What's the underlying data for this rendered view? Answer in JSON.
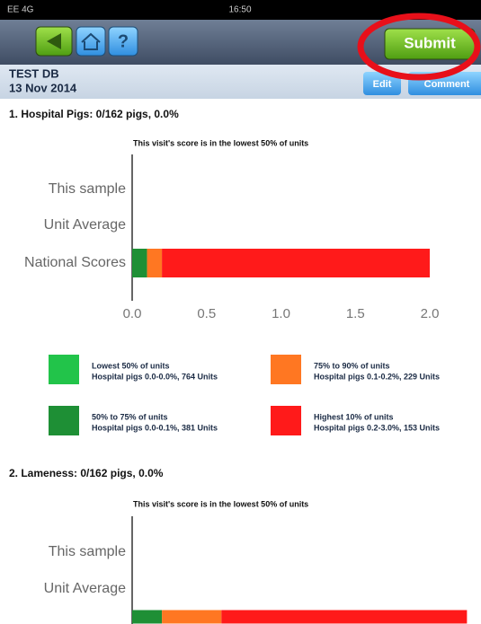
{
  "status_bar": {
    "carrier": "EE 4G",
    "time": "16:50"
  },
  "toolbar": {
    "submit": "Submit"
  },
  "header": {
    "title": "TEST DB",
    "date": "13 Nov 2014",
    "edit": "Edit",
    "comment": "Comment"
  },
  "sections": [
    {
      "title": "1. Hospital Pigs: 0/162 pigs, 0.0%",
      "chart": {
        "type": "bar",
        "orientation": "horizontal",
        "stacked": true,
        "subtitle": "This visit's score is in the lowest 50% of units",
        "categories": [
          "This sample",
          "Unit Average",
          "National Scores"
        ],
        "xlim": [
          0,
          2.0
        ],
        "xticks": [
          {
            "value": 0,
            "label": "0.0"
          },
          {
            "value": 0.5,
            "label": "0.5"
          },
          {
            "value": 1.0,
            "label": "1.0"
          },
          {
            "value": 1.5,
            "label": "1.5"
          },
          {
            "value": 2.0,
            "label": "2.0"
          }
        ],
        "series": [
          {
            "name": "Lowest 50% of units",
            "detail": "Hospital pigs 0.0-0.0%, 764 Units",
            "color": "#22c44a",
            "values": [
              null,
              null,
              0
            ]
          },
          {
            "name": "50% to 75% of units",
            "detail": "Hospital pigs 0.0-0.1%, 381 Units",
            "color": "#1e8f35",
            "values": [
              null,
              null,
              0.1
            ]
          },
          {
            "name": "75% to 90% of units",
            "detail": "Hospital pigs 0.1-0.2%, 229 Units",
            "color": "#ff7722",
            "values": [
              null,
              null,
              0.1
            ]
          },
          {
            "name": "Highest 10% of units",
            "detail": "Hospital pigs 0.2-3.0%, 153 Units",
            "color": "#ff1a1a",
            "values": [
              null,
              null,
              1.8
            ]
          }
        ]
      }
    },
    {
      "title": "2. Lameness: 0/162 pigs, 0.0%",
      "chart": {
        "type": "bar",
        "orientation": "horizontal",
        "stacked": true,
        "subtitle": "This visit's score is in the lowest 50% of units",
        "categories": [
          "This sample",
          "Unit Average",
          null
        ],
        "series": [
          {
            "color": "#1e8f35",
            "values": [
              null,
              null,
              0.2
            ]
          },
          {
            "color": "#ff7722",
            "values": [
              null,
              null,
              0.4
            ]
          },
          {
            "color": "#ff1a1a",
            "values": [
              null,
              null,
              1.65
            ]
          }
        ]
      }
    }
  ]
}
